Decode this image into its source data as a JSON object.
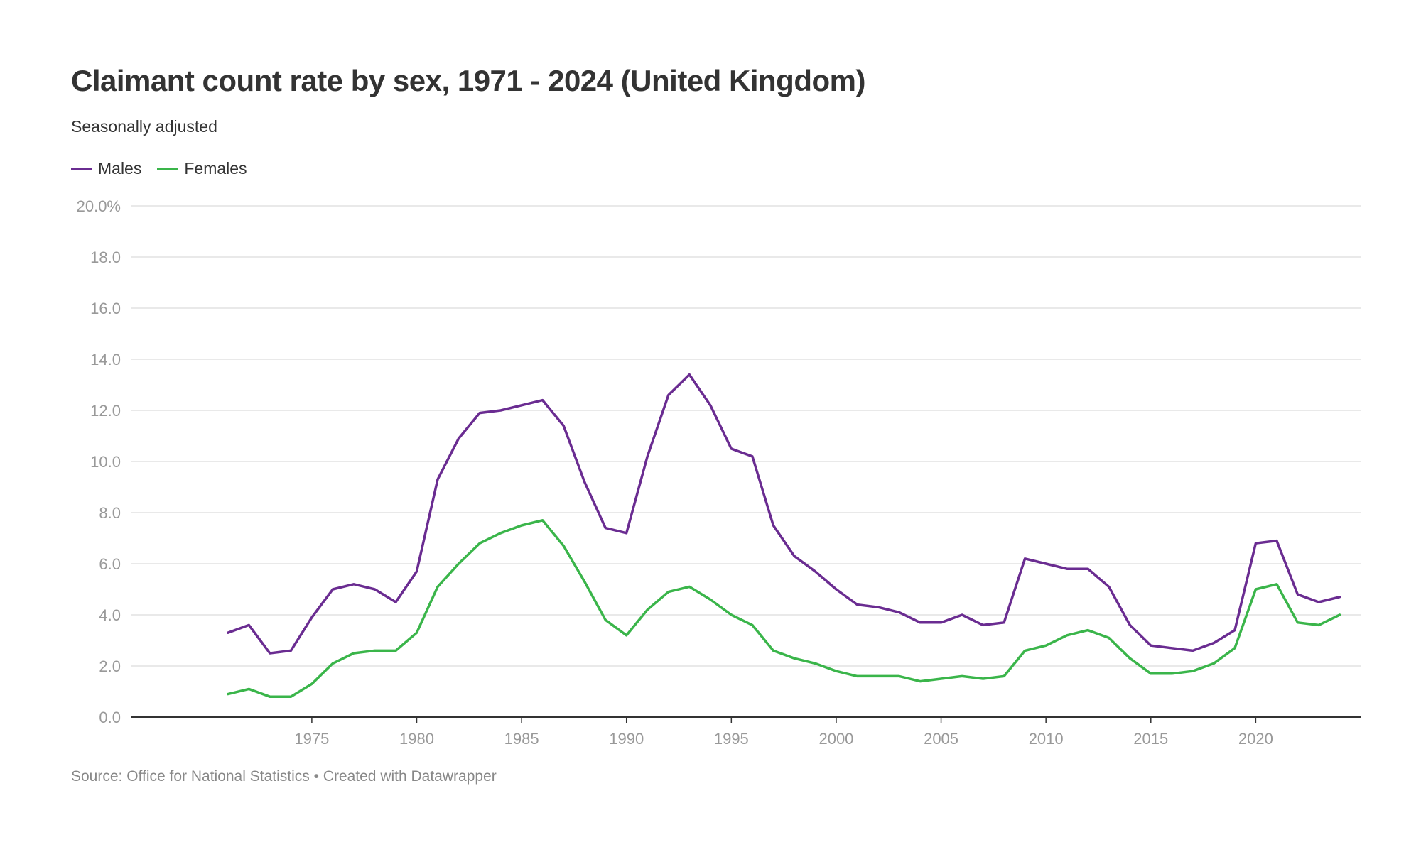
{
  "header": {
    "title": "Claimant count rate by sex, 1971 - 2024 (United Kingdom)",
    "subtitle": "Seasonally adjusted"
  },
  "footer": {
    "source": "Source: Office for National Statistics • Created with Datawrapper"
  },
  "chart_data": {
    "type": "line",
    "title": "Claimant count rate by sex, 1971 - 2024 (United Kingdom)",
    "subtitle": "Seasonally adjusted",
    "xlabel": "",
    "ylabel": "",
    "x": [
      1971,
      1972,
      1973,
      1974,
      1975,
      1976,
      1977,
      1978,
      1979,
      1980,
      1981,
      1982,
      1983,
      1984,
      1985,
      1986,
      1987,
      1988,
      1989,
      1990,
      1991,
      1992,
      1993,
      1994,
      1995,
      1996,
      1997,
      1998,
      1999,
      2000,
      2001,
      2002,
      2003,
      2004,
      2005,
      2006,
      2007,
      2008,
      2009,
      2010,
      2011,
      2012,
      2013,
      2014,
      2015,
      2016,
      2017,
      2018,
      2019,
      2020,
      2021,
      2022,
      2023,
      2024
    ],
    "series": [
      {
        "name": "Males",
        "color": "#6a2c91",
        "values": [
          3.3,
          3.6,
          2.5,
          2.6,
          3.9,
          5.0,
          5.2,
          5.0,
          4.5,
          5.7,
          9.3,
          10.9,
          11.9,
          12.0,
          12.2,
          12.4,
          11.4,
          9.2,
          7.4,
          7.2,
          10.2,
          12.6,
          13.4,
          12.2,
          10.5,
          10.2,
          7.5,
          6.3,
          5.7,
          5.0,
          4.4,
          4.3,
          4.1,
          3.7,
          3.7,
          4.0,
          3.6,
          3.7,
          6.2,
          6.0,
          5.8,
          5.8,
          5.1,
          3.6,
          2.8,
          2.7,
          2.6,
          2.9,
          3.4,
          6.8,
          6.9,
          4.8,
          4.5,
          4.7
        ]
      },
      {
        "name": "Females",
        "color": "#3ab54a",
        "values": [
          0.9,
          1.1,
          0.8,
          0.8,
          1.3,
          2.1,
          2.5,
          2.6,
          2.6,
          3.3,
          5.1,
          6.0,
          6.8,
          7.2,
          7.5,
          7.7,
          6.7,
          5.3,
          3.8,
          3.2,
          4.2,
          4.9,
          5.1,
          4.6,
          4.0,
          3.6,
          2.6,
          2.3,
          2.1,
          1.8,
          1.6,
          1.6,
          1.6,
          1.4,
          1.5,
          1.6,
          1.5,
          1.6,
          2.6,
          2.8,
          3.2,
          3.4,
          3.1,
          2.3,
          1.7,
          1.7,
          1.8,
          2.1,
          2.7,
          5.0,
          5.2,
          3.7,
          3.6,
          4.0
        ]
      }
    ],
    "ylim": [
      0,
      20
    ],
    "yticks": [
      "0.0",
      "2.0",
      "4.0",
      "6.0",
      "8.0",
      "10.0",
      "12.0",
      "14.0",
      "16.0",
      "18.0",
      "20.0%"
    ],
    "xticks": [
      1975,
      1980,
      1985,
      1990,
      1995,
      2000,
      2005,
      2010,
      2015,
      2020
    ],
    "grid": true,
    "legend_position": "top-left"
  }
}
